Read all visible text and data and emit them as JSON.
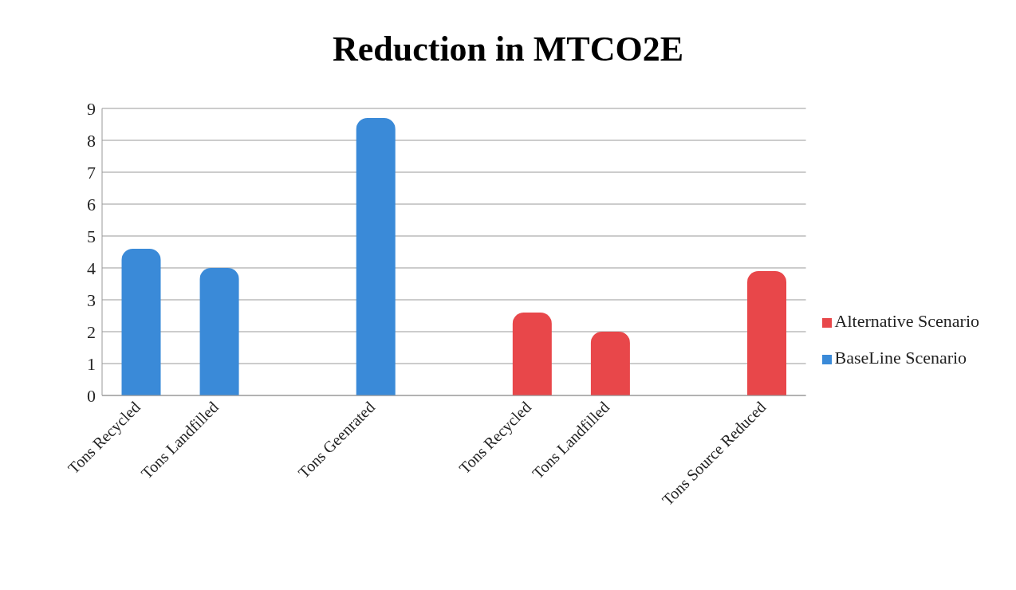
{
  "chart_data": {
    "type": "bar",
    "title": "Reduction in MTCO2E",
    "categories": [
      "Tons Recycled",
      "Tons Landfilled",
      null,
      "Tons Geenrated",
      null,
      "Tons Recycled",
      "Tons Landfilled",
      null,
      "Tons Source Reduced"
    ],
    "series": [
      {
        "name": "Alternative Scenario",
        "color": "#e8474a",
        "values": [
          null,
          null,
          null,
          null,
          null,
          2.6,
          2.0,
          null,
          3.9
        ]
      },
      {
        "name": "BaseLine Scenario",
        "color": "#3a8ad8",
        "values": [
          4.6,
          4.0,
          null,
          8.7,
          null,
          null,
          null,
          null,
          null
        ]
      }
    ],
    "stacked": true,
    "ylim": [
      0,
      9
    ],
    "yticks": [
      0,
      1,
      2,
      3,
      4,
      5,
      6,
      7,
      8,
      9
    ],
    "grid": "y",
    "legend": "right"
  }
}
